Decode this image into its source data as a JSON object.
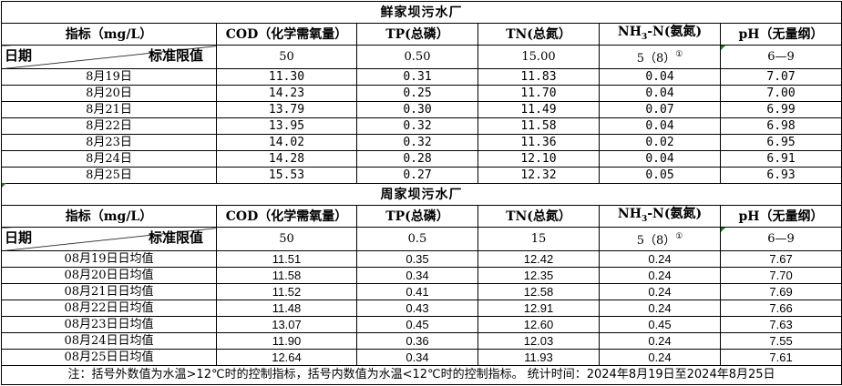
{
  "columns": [
    "指标（mg/L）",
    "COD（化学需氧量）",
    "TP(总磷）",
    "TN(总氮）",
    "NH3-N(氨氮)",
    "pH（无量纲）"
  ],
  "nh3_label": {
    "pre": "NH",
    "sub": "3",
    "post": "-N(氨氮)"
  },
  "diag": {
    "left": "日期",
    "right": "标准限值"
  },
  "plants": [
    {
      "name": "鲜家坝污水厂",
      "standards": [
        "50",
        "0.50",
        "15.00",
        "5（8）",
        "6—9"
      ],
      "footnote_mark": "①",
      "rows": [
        [
          "8月19日",
          "11.30",
          "0.31",
          "11.83",
          "0.04",
          "7.07"
        ],
        [
          "8月20日",
          "14.23",
          "0.25",
          "11.70",
          "0.04",
          "7.00"
        ],
        [
          "8月21日",
          "13.79",
          "0.30",
          "11.49",
          "0.07",
          "6.99"
        ],
        [
          "8月22日",
          "13.95",
          "0.32",
          "11.58",
          "0.04",
          "6.98"
        ],
        [
          "8月23日",
          "14.02",
          "0.32",
          "11.36",
          "0.02",
          "6.95"
        ],
        [
          "8月24日",
          "14.28",
          "0.28",
          "12.10",
          "0.04",
          "6.91"
        ],
        [
          "8月25日",
          "15.53",
          "0.27",
          "12.32",
          "0.05",
          "6.93"
        ]
      ]
    },
    {
      "name": "周家坝污水厂",
      "standards": [
        "50",
        "0.5",
        "15",
        "5（8）",
        "6—9"
      ],
      "footnote_mark": "①",
      "rows": [
        [
          "08月19日日均值",
          "11.51",
          "0.35",
          "12.42",
          "0.24",
          "7.67"
        ],
        [
          "08月20日日均值",
          "11.58",
          "0.34",
          "12.35",
          "0.24",
          "7.70"
        ],
        [
          "08月21日日均值",
          "11.52",
          "0.41",
          "12.58",
          "0.24",
          "7.69"
        ],
        [
          "08月22日日均值",
          "11.48",
          "0.43",
          "12.91",
          "0.24",
          "7.66"
        ],
        [
          "08月23日日均值",
          "13.07",
          "0.45",
          "12.60",
          "0.45",
          "7.63"
        ],
        [
          "08月24日日均值",
          "11.90",
          "0.36",
          "12.03",
          "0.24",
          "7.55"
        ],
        [
          "08月25日日均值",
          "12.64",
          "0.34",
          "11.93",
          "0.24",
          "7.61"
        ]
      ]
    }
  ],
  "note": "注：括号外数值为水温>12℃时的控制指标，括号内数值为水温<12℃时的控制指标。   统计时间：2024年8月19日至2024年8月25日"
}
